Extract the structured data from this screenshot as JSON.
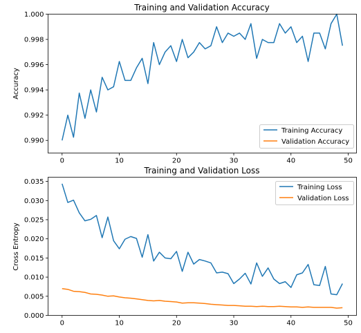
{
  "chart_data": [
    {
      "type": "line",
      "title": "Training and Validation Accuracy",
      "xlabel": "",
      "ylabel": "Accuracy",
      "xlim": [
        -2.45,
        51.45
      ],
      "ylim": [
        0.989,
        1.0
      ],
      "xticks": [
        0,
        10,
        20,
        30,
        40,
        50
      ],
      "yticks": [
        0.99,
        0.992,
        0.994,
        0.996,
        0.998,
        1.0
      ],
      "ytick_decimals": 3,
      "legend": "lower right",
      "grid": false,
      "series": [
        {
          "name": "Training Accuracy",
          "color": "#1f77b4",
          "x": [
            0,
            1,
            2,
            3,
            4,
            5,
            6,
            7,
            8,
            9,
            10,
            11,
            12,
            13,
            14,
            15,
            16,
            17,
            18,
            19,
            20,
            21,
            22,
            23,
            24,
            25,
            26,
            27,
            28,
            29,
            30,
            31,
            32,
            33,
            34,
            35,
            36,
            37,
            38,
            39,
            40,
            41,
            42,
            43,
            44,
            45,
            46,
            47,
            48,
            49
          ],
          "values": [
            0.99,
            0.992,
            0.99025,
            0.99375,
            0.99175,
            0.994,
            0.99225,
            0.995,
            0.994,
            0.99425,
            0.99625,
            0.99475,
            0.99475,
            0.99575,
            0.9965,
            0.9945,
            0.99775,
            0.996,
            0.997,
            0.9975,
            0.99625,
            0.998,
            0.99655,
            0.997,
            0.99775,
            0.99725,
            0.9975,
            0.999,
            0.99775,
            0.9985,
            0.99825,
            0.9985,
            0.998,
            0.99925,
            0.9965,
            0.998,
            0.99775,
            0.99775,
            0.99925,
            0.9985,
            0.999,
            0.99775,
            0.99825,
            0.99625,
            0.9985,
            0.9985,
            0.99725,
            0.99925,
            1.0,
            0.9975
          ]
        },
        {
          "name": "Validation Accuracy",
          "color": "#ff7f0e",
          "x": [],
          "values": []
        }
      ]
    },
    {
      "type": "line",
      "title": "Training and Validation Loss",
      "xlabel": "",
      "ylabel": "Cross Entropy",
      "xlim": [
        -2.45,
        51.45
      ],
      "ylim": [
        0,
        0.0361
      ],
      "xticks": [
        0,
        10,
        20,
        30,
        40,
        50
      ],
      "yticks": [
        0.0,
        0.005,
        0.01,
        0.015,
        0.02,
        0.025,
        0.03,
        0.035
      ],
      "ytick_decimals": 3,
      "legend": "upper right",
      "grid": false,
      "series": [
        {
          "name": "Training Loss",
          "color": "#1f77b4",
          "x": [
            0,
            1,
            2,
            3,
            4,
            5,
            6,
            7,
            8,
            9,
            10,
            11,
            12,
            13,
            14,
            15,
            16,
            17,
            18,
            19,
            20,
            21,
            22,
            23,
            24,
            25,
            26,
            27,
            28,
            29,
            30,
            31,
            32,
            33,
            34,
            35,
            36,
            37,
            38,
            39,
            40,
            41,
            42,
            43,
            44,
            45,
            46,
            47,
            48,
            49
          ],
          "values": [
            0.0344,
            0.0295,
            0.0301,
            0.0268,
            0.0247,
            0.0251,
            0.0261,
            0.0203,
            0.0257,
            0.0195,
            0.0174,
            0.0199,
            0.0206,
            0.0201,
            0.0152,
            0.0211,
            0.0142,
            0.0165,
            0.015,
            0.0148,
            0.0167,
            0.0115,
            0.0165,
            0.0134,
            0.0146,
            0.0142,
            0.0137,
            0.0111,
            0.0113,
            0.0109,
            0.0083,
            0.0095,
            0.011,
            0.0082,
            0.0137,
            0.0102,
            0.0124,
            0.0095,
            0.0083,
            0.0088,
            0.0073,
            0.0106,
            0.0111,
            0.0133,
            0.008,
            0.0078,
            0.0128,
            0.0056,
            0.0054,
            0.0083
          ]
        },
        {
          "name": "Validation Loss",
          "color": "#ff7f0e",
          "x": [
            0,
            1,
            2,
            3,
            4,
            5,
            6,
            7,
            8,
            9,
            10,
            11,
            12,
            13,
            14,
            15,
            16,
            17,
            18,
            19,
            20,
            21,
            22,
            23,
            24,
            25,
            26,
            27,
            28,
            29,
            30,
            31,
            32,
            33,
            34,
            35,
            36,
            37,
            38,
            39,
            40,
            41,
            42,
            43,
            44,
            45,
            46,
            47,
            48,
            49
          ],
          "values": [
            0.007,
            0.0068,
            0.0063,
            0.0062,
            0.006,
            0.0056,
            0.0055,
            0.0053,
            0.005,
            0.0051,
            0.0048,
            0.0046,
            0.0045,
            0.0043,
            0.0041,
            0.0039,
            0.0038,
            0.0039,
            0.0037,
            0.0036,
            0.0035,
            0.0032,
            0.0033,
            0.0033,
            0.0032,
            0.0031,
            0.0029,
            0.0028,
            0.0027,
            0.0026,
            0.0026,
            0.0025,
            0.0024,
            0.0024,
            0.0023,
            0.0024,
            0.0023,
            0.0023,
            0.0024,
            0.0023,
            0.0022,
            0.0022,
            0.0021,
            0.0022,
            0.0021,
            0.0021,
            0.0021,
            0.0021,
            0.0019,
            0.002
          ]
        }
      ]
    }
  ]
}
